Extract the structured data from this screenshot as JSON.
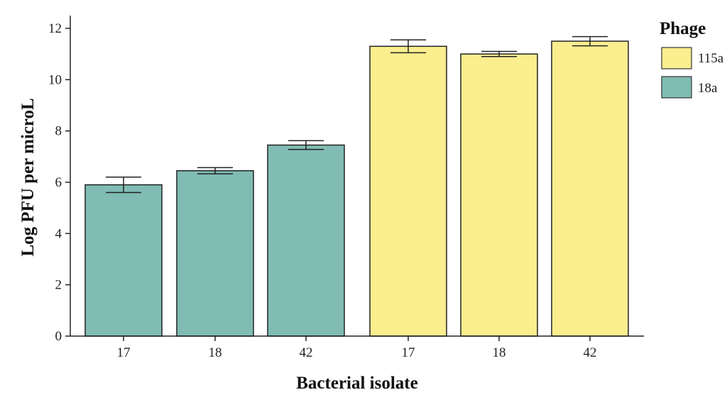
{
  "chart_data": {
    "type": "bar",
    "xlabel": "Bacterial isolate",
    "ylabel": "Log PFU per microL",
    "ylim": [
      0,
      12
    ],
    "yticks": [
      0,
      2,
      4,
      6,
      8,
      10,
      12
    ],
    "grid": false,
    "legend": {
      "title": "Phage",
      "placement": "right",
      "entries": [
        {
          "label": "115a",
          "color": "#FBEE8F"
        },
        {
          "label": "18a",
          "color": "#80BCB4"
        }
      ]
    },
    "bars": [
      {
        "category": "17",
        "phage": "18a",
        "value": 5.9,
        "err": 0.3,
        "color": "#80BCB4"
      },
      {
        "category": "18",
        "phage": "18a",
        "value": 6.45,
        "err": 0.12,
        "color": "#80BCB4"
      },
      {
        "category": "42",
        "phage": "18a",
        "value": 7.45,
        "err": 0.17,
        "color": "#80BCB4"
      },
      {
        "category": "17",
        "phage": "115a",
        "value": 11.3,
        "err": 0.25,
        "color": "#FBEE8F"
      },
      {
        "category": "18",
        "phage": "115a",
        "value": 11.0,
        "err": 0.1,
        "color": "#FBEE8F"
      },
      {
        "category": "42",
        "phage": "115a",
        "value": 11.5,
        "err": 0.18,
        "color": "#FBEE8F"
      }
    ]
  }
}
